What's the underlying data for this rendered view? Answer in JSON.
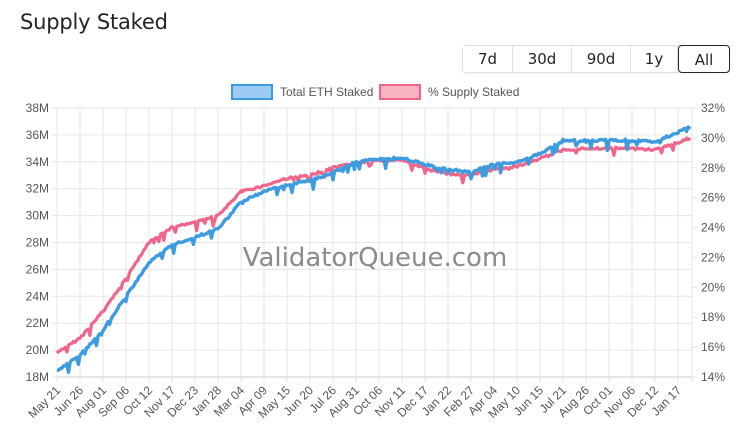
{
  "header": {
    "title": "Supply Staked"
  },
  "range_buttons": [
    {
      "label": "7d",
      "active": false
    },
    {
      "label": "30d",
      "active": false
    },
    {
      "label": "90d",
      "active": false
    },
    {
      "label": "1y",
      "active": false
    },
    {
      "label": "All",
      "active": true
    }
  ],
  "legend": [
    {
      "label": "Total ETH Staked",
      "fill": "#9ecbf3",
      "border": "#3d9be0"
    },
    {
      "label": "% Supply Staked",
      "fill": "#f9b3c2",
      "border": "#f0668a"
    }
  ],
  "watermark": "ValidatorQueue.com",
  "colors": {
    "eth": "#3d9be0",
    "pct": "#f0668a",
    "grid": "#e6e6e6"
  },
  "chart_data": {
    "type": "line",
    "title": "Supply Staked",
    "x": [
      "May 21",
      "Jun 26",
      "Aug 01",
      "Sep 06",
      "Oct 12",
      "Nov 17",
      "Dec 23",
      "Jan 28",
      "Mar 04",
      "Apr 09",
      "May 15",
      "Jun 20",
      "Jul 26",
      "Aug 31",
      "Oct 06",
      "Nov 11",
      "Dec 17",
      "Jan 22",
      "Feb 27",
      "Apr 04",
      "May 10",
      "Jun 15",
      "Jul 21",
      "Aug 26",
      "Oct 01",
      "Nov 06",
      "Dec 12",
      "Jan 17"
    ],
    "series": [
      {
        "name": "Total ETH Staked",
        "axis": "left",
        "unit": "M",
        "values": [
          18.5,
          19.6,
          21.5,
          24.0,
          26.5,
          27.8,
          28.4,
          29.0,
          31.0,
          31.8,
          32.3,
          32.6,
          33.2,
          34.0,
          34.2,
          34.3,
          33.8,
          33.4,
          33.3,
          33.8,
          34.0,
          34.6,
          35.6,
          35.6,
          35.6,
          35.6,
          35.5,
          36.2
        ]
      },
      {
        "name": "% Supply Staked",
        "axis": "right",
        "unit": "%",
        "values": [
          15.6,
          16.6,
          18.4,
          20.6,
          23.0,
          24.0,
          24.4,
          24.8,
          26.4,
          26.8,
          27.3,
          27.5,
          28.0,
          28.3,
          28.5,
          28.5,
          28.0,
          27.6,
          27.5,
          27.9,
          28.1,
          28.6,
          29.2,
          29.3,
          29.3,
          29.3,
          29.2,
          29.7
        ]
      }
    ],
    "y_left": {
      "ticks": [
        "18M",
        "20M",
        "22M",
        "24M",
        "26M",
        "28M",
        "30M",
        "32M",
        "34M",
        "36M",
        "38M"
      ],
      "range": [
        18,
        38
      ]
    },
    "y_right": {
      "ticks": [
        "14%",
        "16%",
        "18%",
        "20%",
        "22%",
        "24%",
        "26%",
        "28%",
        "30%",
        "32%"
      ],
      "range": [
        14,
        32
      ]
    },
    "grid": true,
    "legend_position": "top"
  }
}
